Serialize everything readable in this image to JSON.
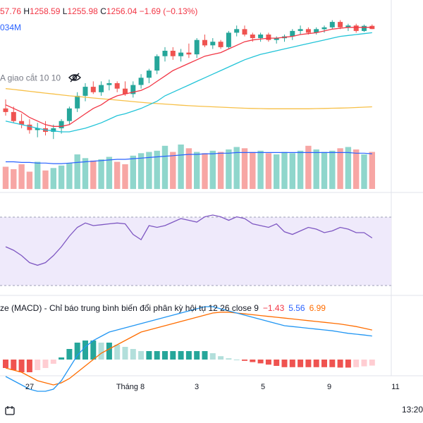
{
  "header": {
    "ohlc_prefix": "57.76",
    "high_label": "H",
    "high": "1258.59",
    "low_label": "L",
    "low": "1255.98",
    "close_label": "C",
    "close": "1256.04",
    "change": "−1.69 (−0.13%)",
    "volume_text": "034M"
  },
  "ma_legend": {
    "text": "A giao cắt 10 10",
    "icon": "eye-crossed-icon"
  },
  "macd_legend": {
    "title": "ze (MACD) - Chỉ báo trung bình biến đổi phân kỳ hội tụ 12 26 close 9",
    "histogram": "−1.43",
    "macd": "5.56",
    "signal": "6.99"
  },
  "x_axis": {
    "ticks": [
      "27",
      "Tháng 8",
      "3",
      "5",
      "9",
      "11"
    ]
  },
  "time_label": "13:20",
  "colors": {
    "up": "#26a69a",
    "down": "#ef5350",
    "ma_fast": "#f23645",
    "ma_slow": "#22c4d8",
    "ma_long": "#f7c048",
    "vol_up": "#8fd6cc",
    "vol_down": "#f7a6a4",
    "vol_ma": "#2962ff",
    "rsi": "#7e57c2",
    "rsi_band": "#efeafb",
    "macd_line": "#2196f3",
    "signal_line": "#ff6d00"
  },
  "chart_data": {
    "type": "candlestick",
    "candles": [
      [
        1212.0,
        1217.0,
        1208.0,
        1210.0
      ],
      [
        1210.0,
        1213.0,
        1204.0,
        1205.0
      ],
      [
        1205.0,
        1209.0,
        1201.0,
        1203.0
      ],
      [
        1203.0,
        1206.0,
        1198.0,
        1200.0
      ],
      [
        1200.0,
        1204.0,
        1196.0,
        1201.0
      ],
      [
        1201.0,
        1205.0,
        1197.0,
        1199.0
      ],
      [
        1199.0,
        1203.0,
        1195.0,
        1201.0
      ],
      [
        1201.0,
        1206.0,
        1198.0,
        1205.0
      ],
      [
        1205.0,
        1213.0,
        1203.0,
        1212.0
      ],
      [
        1212.0,
        1221.0,
        1210.0,
        1219.0
      ],
      [
        1219.0,
        1226.0,
        1216.0,
        1224.0
      ],
      [
        1224.0,
        1227.0,
        1220.0,
        1221.0
      ],
      [
        1221.0,
        1227.0,
        1219.0,
        1225.0
      ],
      [
        1225.0,
        1228.0,
        1222.0,
        1226.0
      ],
      [
        1226.0,
        1227.0,
        1221.0,
        1223.0
      ],
      [
        1223.0,
        1227.0,
        1219.0,
        1220.0
      ],
      [
        1220.0,
        1227.0,
        1218.0,
        1225.0
      ],
      [
        1225.0,
        1231.0,
        1223.0,
        1229.0
      ],
      [
        1229.0,
        1234.0,
        1226.0,
        1233.0
      ],
      [
        1233.0,
        1242.0,
        1231.0,
        1241.0
      ],
      [
        1241.0,
        1246.0,
        1238.0,
        1244.0
      ],
      [
        1244.0,
        1246.0,
        1239.0,
        1241.0
      ],
      [
        1241.0,
        1245.0,
        1238.0,
        1243.0
      ],
      [
        1243.0,
        1248.0,
        1240.0,
        1242.0
      ],
      [
        1242.0,
        1251.0,
        1240.0,
        1250.0
      ],
      [
        1250.0,
        1253.0,
        1246.0,
        1247.0
      ],
      [
        1247.0,
        1251.0,
        1245.0,
        1249.0
      ],
      [
        1249.0,
        1250.0,
        1245.0,
        1246.0
      ],
      [
        1246.0,
        1255.0,
        1245.0,
        1254.0
      ],
      [
        1254.0,
        1258.0,
        1252.0,
        1256.0
      ],
      [
        1256.0,
        1258.0,
        1252.0,
        1253.0
      ],
      [
        1253.0,
        1254.0,
        1249.0,
        1251.0
      ],
      [
        1251.0,
        1254.0,
        1249.0,
        1253.0
      ],
      [
        1253.0,
        1254.0,
        1249.0,
        1250.0
      ],
      [
        1250.0,
        1252.0,
        1248.0,
        1251.0
      ],
      [
        1251.0,
        1253.0,
        1249.0,
        1252.0
      ],
      [
        1252.0,
        1256.0,
        1250.0,
        1255.0
      ],
      [
        1255.0,
        1258.0,
        1253.0,
        1256.0
      ],
      [
        1256.0,
        1257.0,
        1253.0,
        1254.0
      ],
      [
        1254.0,
        1257.0,
        1253.0,
        1256.0
      ],
      [
        1256.0,
        1258.0,
        1254.0,
        1257.0
      ],
      [
        1257.0,
        1261.0,
        1256.0,
        1260.0
      ],
      [
        1260.0,
        1261.0,
        1256.0,
        1257.0
      ],
      [
        1257.0,
        1259.0,
        1255.0,
        1258.0
      ],
      [
        1258.0,
        1259.0,
        1254.0,
        1255.0
      ],
      [
        1255.0,
        1258.5,
        1254.5,
        1257.8
      ],
      [
        1257.8,
        1258.59,
        1255.98,
        1256.04
      ]
    ],
    "ma_fast": [
      1214,
      1212,
      1210,
      1207,
      1205,
      1203,
      1202,
      1202,
      1203,
      1206,
      1209,
      1212,
      1214,
      1217,
      1219,
      1220,
      1221,
      1222,
      1224,
      1227,
      1230,
      1233,
      1235,
      1237,
      1239,
      1241,
      1242,
      1243,
      1245,
      1247,
      1249,
      1250,
      1250.5,
      1251,
      1251,
      1251.5,
      1252,
      1253,
      1253.5,
      1254,
      1255,
      1256,
      1256.5,
      1257,
      1257,
      1257,
      1257
    ],
    "ma_slow": [
      1205,
      1204,
      1203,
      1202,
      1201,
      1200,
      1199.5,
      1199,
      1199,
      1200,
      1201,
      1202.5,
      1204,
      1206,
      1208,
      1209,
      1210.5,
      1212,
      1214,
      1216,
      1219,
      1221,
      1223,
      1225,
      1227,
      1229,
      1231,
      1233,
      1235,
      1237,
      1239,
      1240.5,
      1242,
      1243,
      1244,
      1245,
      1246,
      1247,
      1248,
      1249,
      1250,
      1251,
      1252,
      1252.5,
      1253,
      1253.5,
      1254
    ],
    "ma_long": [
      1223,
      1222.5,
      1222,
      1221.5,
      1221,
      1220.5,
      1220,
      1219.5,
      1219,
      1218.6,
      1218.2,
      1217.8,
      1217.4,
      1217,
      1216.6,
      1216.2,
      1215.8,
      1215.4,
      1215,
      1214.7,
      1214.4,
      1214.1,
      1213.8,
      1213.5,
      1213.3,
      1213.1,
      1212.9,
      1212.7,
      1212.5,
      1212.3,
      1212.1,
      1212,
      1211.9,
      1211.8,
      1211.8,
      1211.8,
      1211.8,
      1211.8,
      1211.8,
      1211.9,
      1212,
      1212.1,
      1212.2,
      1212.3,
      1212.5,
      1212.7,
      1212.9
    ],
    "volume": [
      18,
      16,
      20,
      14,
      22,
      15,
      17,
      19,
      21,
      28,
      25,
      23,
      24,
      26,
      22,
      20,
      27,
      29,
      30,
      31,
      35,
      30,
      36,
      33,
      30,
      29,
      31,
      30,
      32,
      34,
      33,
      30,
      31,
      29,
      28,
      30,
      29,
      31,
      35,
      32,
      30,
      31,
      33,
      34,
      32,
      28,
      30
    ],
    "volume_ma": [
      22,
      22,
      21.5,
      21.5,
      21,
      21,
      20.5,
      20.5,
      21,
      21.5,
      22,
      22.5,
      23,
      23.5,
      24,
      24,
      24.5,
      25,
      25.5,
      26,
      26.5,
      27,
      27.5,
      28,
      28,
      28.5,
      28.5,
      29,
      29,
      29.5,
      29.5,
      29.5,
      29.5,
      29.5,
      29.5,
      29.5,
      29.5,
      29.5,
      29.5,
      29.5,
      29.5,
      29.5,
      29.5,
      29.5,
      29,
      29,
      28.5
    ],
    "rsi": [
      48,
      44,
      38,
      30,
      27,
      30,
      38,
      48,
      60,
      70,
      75,
      72,
      73,
      74,
      75,
      74,
      62,
      56,
      72,
      70,
      72,
      76,
      80,
      78,
      76,
      82,
      84,
      82,
      78,
      82,
      80,
      74,
      72,
      70,
      74,
      65,
      62,
      66,
      70,
      68,
      64,
      66,
      70,
      68,
      64,
      64,
      58
    ],
    "rsi_band": [
      30,
      70
    ],
    "macd": [
      -4,
      -5,
      -6,
      -7,
      -7.5,
      -7.5,
      -7,
      -5,
      -2,
      1,
      3,
      4.5,
      5.5,
      6.5,
      7,
      7.5,
      8,
      8.5,
      9,
      9.5,
      10,
      10.5,
      11,
      11.5,
      12,
      12.5,
      12.5,
      12,
      11.5,
      11,
      10.5,
      10,
      9.5,
      9,
      8.5,
      8,
      7.8,
      7.6,
      7.4,
      7.2,
      7,
      6.8,
      6.5,
      6.2,
      6,
      5.8,
      5.56
    ],
    "signal": [
      -2,
      -2.5,
      -3,
      -4,
      -5,
      -5.5,
      -6,
      -5.5,
      -4.5,
      -3,
      -1.5,
      0,
      1.5,
      2.5,
      3.5,
      4.5,
      5.5,
      6.5,
      7,
      7.5,
      8,
      8.5,
      9,
      9.5,
      10,
      10.5,
      11,
      11.2,
      11.2,
      11,
      10.8,
      10.6,
      10.4,
      10.2,
      10,
      9.8,
      9.6,
      9.4,
      9.2,
      9,
      8.8,
      8.6,
      8.4,
      8.1,
      7.8,
      7.4,
      6.99
    ],
    "histogram": [
      -2,
      -2.5,
      -3,
      -3,
      -2.5,
      -2,
      -1,
      0.5,
      2.5,
      4,
      4.5,
      4.5,
      4,
      4,
      3.5,
      3,
      2.5,
      2,
      2,
      2,
      2,
      2,
      2,
      2,
      2,
      2,
      1.5,
      0.8,
      0.3,
      0,
      -0.3,
      -0.6,
      -0.9,
      -1.2,
      -1.5,
      -1.8,
      -1.8,
      -1.8,
      -1.8,
      -1.8,
      -1.8,
      -1.8,
      -1.9,
      -1.9,
      -1.8,
      -1.6,
      -1.43
    ],
    "x_labels": [
      "27",
      "Tháng 8",
      "3",
      "5",
      "9",
      "11"
    ]
  }
}
